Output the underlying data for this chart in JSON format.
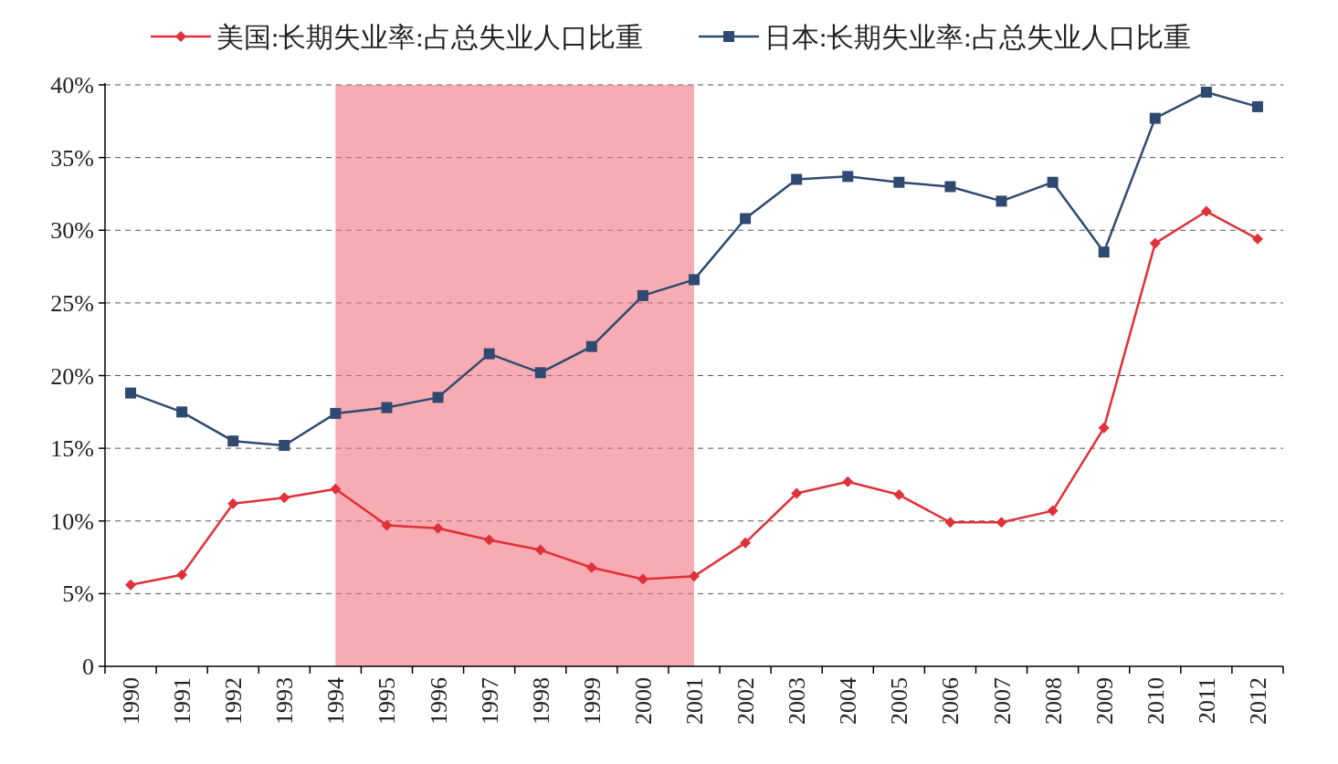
{
  "chart_data": {
    "type": "line",
    "categories": [
      "1990",
      "1991",
      "1992",
      "1993",
      "1994",
      "1995",
      "1996",
      "1997",
      "1998",
      "1999",
      "2000",
      "2001",
      "2002",
      "2003",
      "2004",
      "2005",
      "2006",
      "2007",
      "2008",
      "2009",
      "2010",
      "2011",
      "2012"
    ],
    "series": [
      {
        "name": "美国:长期失业率:占总失业人口比重",
        "color": "#e0303a",
        "marker": "diamond",
        "values": [
          5.6,
          6.3,
          11.2,
          11.6,
          12.2,
          9.7,
          9.5,
          8.7,
          8.0,
          6.8,
          6.0,
          6.2,
          8.5,
          11.9,
          12.7,
          11.8,
          9.9,
          9.9,
          10.7,
          16.4,
          29.1,
          31.3,
          29.4
        ]
      },
      {
        "name": "日本:长期失业率:占总失业人口比重",
        "color": "#2e4a70",
        "marker": "square",
        "values": [
          18.8,
          17.5,
          15.5,
          15.2,
          17.4,
          17.8,
          18.5,
          21.5,
          20.2,
          22.0,
          25.5,
          26.6,
          30.8,
          33.5,
          33.7,
          33.3,
          33.0,
          32.0,
          33.3,
          28.5,
          37.7,
          39.5,
          38.5
        ]
      }
    ],
    "ylim": [
      0,
      40
    ],
    "yticks": [
      0,
      {
        "value": 5,
        "label": "5%"
      },
      {
        "value": 10,
        "label": "10%"
      },
      {
        "value": 15,
        "label": "15%"
      },
      {
        "value": 20,
        "label": "20%"
      },
      {
        "value": 25,
        "label": "25%"
      },
      {
        "value": 30,
        "label": "30%"
      },
      {
        "value": 35,
        "label": "35%"
      },
      {
        "value": 40,
        "label": "40%"
      }
    ],
    "bands": [
      {
        "axis": "x",
        "from": "1994",
        "to": "2001",
        "color": "#f2737e"
      }
    ],
    "grid": "y",
    "legend": "top",
    "line_style": "solid"
  }
}
